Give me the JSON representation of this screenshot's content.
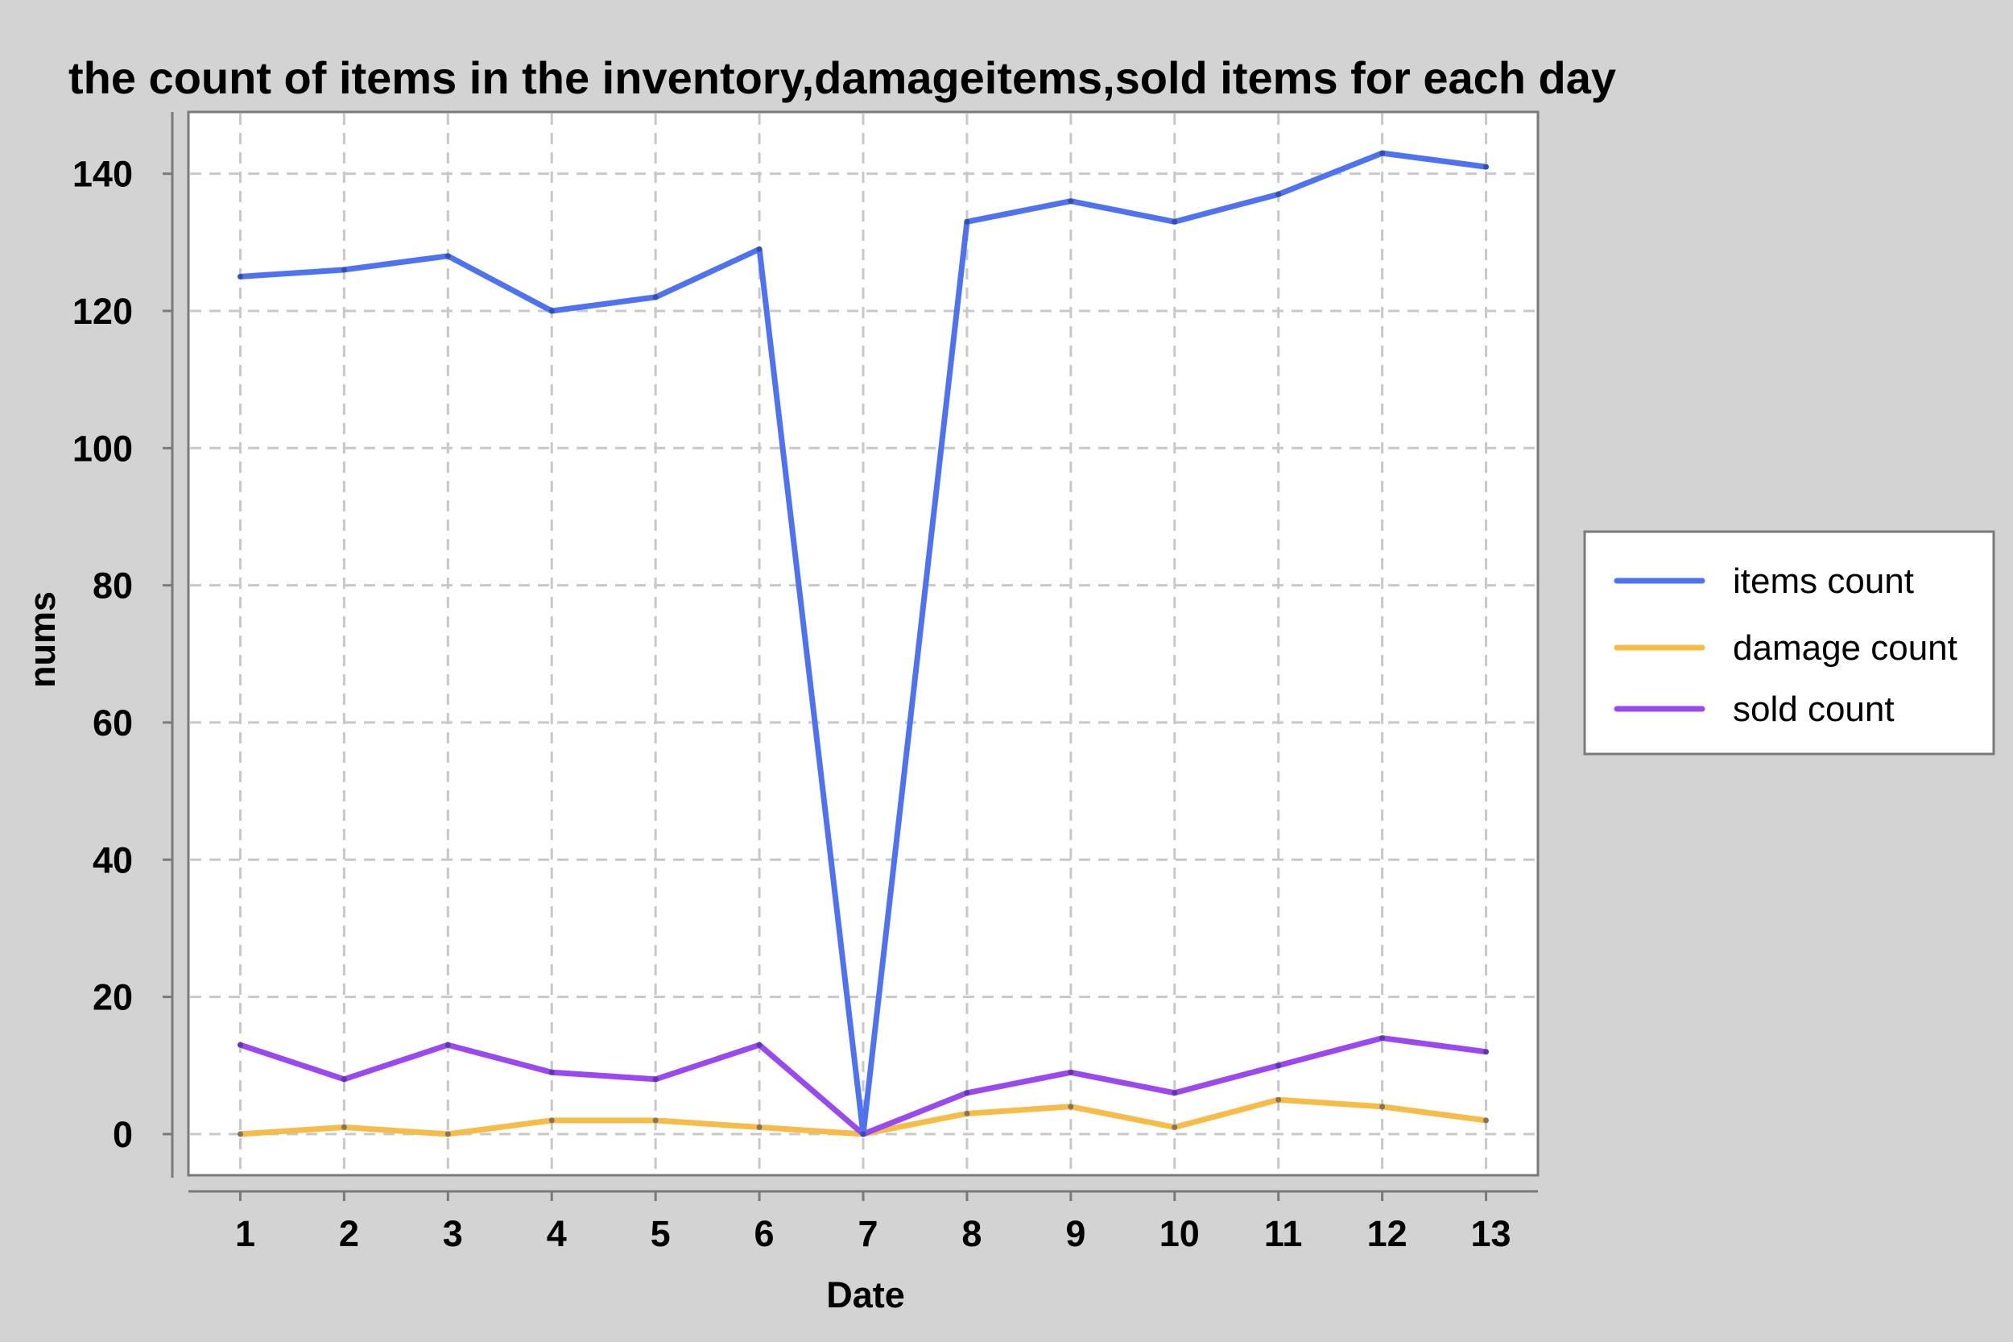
{
  "chart_data": {
    "type": "line",
    "title": "the count of items in the inventory,damageitems,sold items for each day",
    "xlabel": "Date",
    "ylabel": "nums",
    "x": [
      1,
      2,
      3,
      4,
      5,
      6,
      7,
      8,
      9,
      10,
      11,
      12,
      13
    ],
    "x_tick_labels": [
      "1",
      "2",
      "3",
      "4",
      "5",
      "6",
      "7",
      "8",
      "9",
      "10",
      "11",
      "12",
      "13"
    ],
    "y_ticks": [
      0,
      20,
      40,
      60,
      80,
      100,
      120,
      140
    ],
    "y_tick_labels": [
      "0",
      "20",
      "40",
      "60",
      "80",
      "100",
      "120",
      "140"
    ],
    "ylim": [
      -6,
      149
    ],
    "xlim": [
      0.5,
      13.5
    ],
    "grid": true,
    "legend_position": "right",
    "series": [
      {
        "name": "items count",
        "color": "#4f73f0",
        "values": [
          125,
          126,
          128,
          120,
          122,
          129,
          0,
          133,
          136,
          133,
          137,
          143,
          141
        ]
      },
      {
        "name": "damage count",
        "color": "#f7bc48",
        "values": [
          0,
          1,
          0,
          2,
          2,
          1,
          0,
          3,
          4,
          1,
          5,
          4,
          2
        ]
      },
      {
        "name": "sold count",
        "color": "#9a49ee",
        "values": [
          13,
          8,
          13,
          9,
          8,
          13,
          0,
          6,
          9,
          6,
          10,
          14,
          12
        ]
      }
    ]
  }
}
